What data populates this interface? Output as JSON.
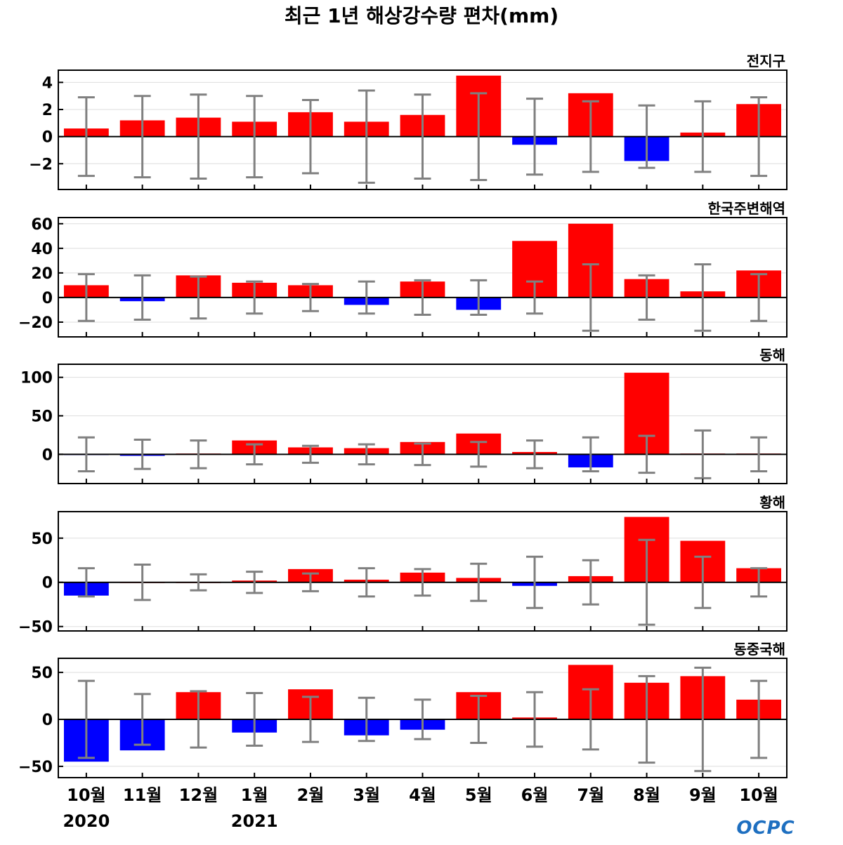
{
  "title": "최근 1년 해상강수량 편차(mm)",
  "months": [
    "10월",
    "11월",
    "12월",
    "1월",
    "2월",
    "3월",
    "4월",
    "5월",
    "6월",
    "7월",
    "8월",
    "9월",
    "10월"
  ],
  "year_labels": [
    {
      "index": 0,
      "text": "2020"
    },
    {
      "index": 3,
      "text": "2021"
    }
  ],
  "logo": "OCPC",
  "colors": {
    "positive": "#ff0000",
    "negative": "#0000ff",
    "errorbar": "#808080",
    "grid": "#dddddd",
    "zero_line": "#000000"
  },
  "chart_data": [
    {
      "type": "bar",
      "name": "전지구",
      "ylim": [
        -3.9,
        4.9
      ],
      "yticks": [
        4,
        2,
        0,
        -2
      ],
      "ytick_labels": [
        "4",
        "2",
        "0",
        "−2"
      ],
      "values": [
        0.6,
        1.2,
        1.4,
        1.1,
        1.8,
        1.1,
        1.6,
        4.5,
        -0.6,
        3.2,
        -1.8,
        0.3,
        2.4
      ],
      "err_hi": [
        2.9,
        3.0,
        3.1,
        3.0,
        2.7,
        3.4,
        3.1,
        3.2,
        2.8,
        2.6,
        2.3,
        2.6,
        2.9
      ],
      "err_lo": [
        -2.9,
        -3.0,
        -3.1,
        -3.0,
        -2.7,
        -3.4,
        -3.1,
        -3.2,
        -2.8,
        -2.6,
        -2.3,
        -2.6,
        -2.9
      ],
      "grid": true
    },
    {
      "type": "bar",
      "name": "한국주변해역",
      "ylim": [
        -32,
        65
      ],
      "yticks": [
        60,
        40,
        20,
        0,
        -20
      ],
      "ytick_labels": [
        "60",
        "40",
        "20",
        "0",
        "−20"
      ],
      "values": [
        10,
        -3,
        18,
        12,
        10,
        -6,
        13,
        -10,
        46,
        60,
        15,
        5,
        22
      ],
      "err_hi": [
        19,
        18,
        17,
        13,
        11,
        13,
        14,
        14,
        13,
        27,
        18,
        27,
        19
      ],
      "err_lo": [
        -19,
        -18,
        -17,
        -13,
        -11,
        -13,
        -14,
        -14,
        -13,
        -27,
        -18,
        -27,
        -19
      ],
      "grid": true
    },
    {
      "type": "bar",
      "name": "동해",
      "ylim": [
        -38,
        117
      ],
      "yticks": [
        100,
        50,
        0
      ],
      "ytick_labels": [
        "100",
        "50",
        "0"
      ],
      "values": [
        -1,
        -2,
        1,
        18,
        9,
        8,
        16,
        27,
        3,
        -17,
        106,
        1,
        1
      ],
      "err_hi": [
        22,
        19,
        18,
        13,
        11,
        13,
        14,
        16,
        18,
        22,
        24,
        31,
        22
      ],
      "err_lo": [
        -22,
        -19,
        -18,
        -13,
        -11,
        -13,
        -14,
        -16,
        -18,
        -22,
        -24,
        -31,
        -22
      ],
      "grid": true
    },
    {
      "type": "bar",
      "name": "황해",
      "ylim": [
        -55,
        80
      ],
      "yticks": [
        50,
        0,
        -50
      ],
      "ytick_labels": [
        "50",
        "0",
        "−50"
      ],
      "values": [
        -15,
        0,
        0,
        2,
        15,
        3,
        11,
        5,
        -4,
        7,
        74,
        47,
        16
      ],
      "err_hi": [
        16,
        20,
        9,
        12,
        10,
        16,
        15,
        21,
        29,
        25,
        48,
        29,
        16
      ],
      "err_lo": [
        -16,
        -20,
        -9,
        -12,
        -10,
        -16,
        -15,
        -21,
        -29,
        -25,
        -48,
        -29,
        -16
      ],
      "grid": true
    },
    {
      "type": "bar",
      "name": "동중국해",
      "ylim": [
        -62,
        65
      ],
      "yticks": [
        50,
        0,
        -50
      ],
      "ytick_labels": [
        "50",
        "0",
        "−50"
      ],
      "values": [
        -45,
        -33,
        29,
        -14,
        32,
        -17,
        -11,
        29,
        2,
        58,
        39,
        46,
        21
      ],
      "err_hi": [
        41,
        27,
        30,
        28,
        24,
        23,
        21,
        25,
        29,
        32,
        46,
        55,
        41
      ],
      "err_lo": [
        -41,
        -27,
        -30,
        -28,
        -24,
        -23,
        -21,
        -25,
        -29,
        -32,
        -46,
        -55,
        -41
      ],
      "grid": true
    }
  ]
}
